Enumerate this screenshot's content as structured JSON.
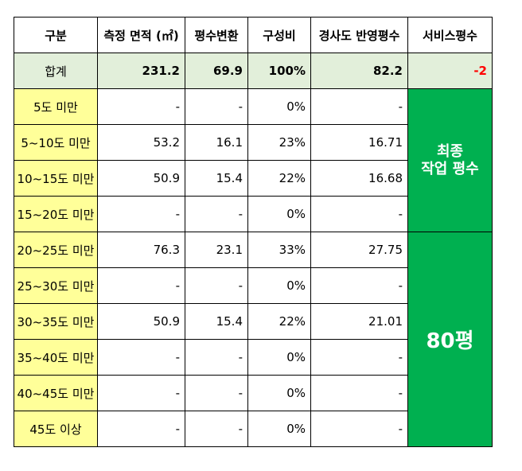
{
  "headers": [
    "구분",
    "측정 면적 (㎡)",
    "평수변환",
    "구성비",
    "경사도 반영평수",
    "서비스평수"
  ],
  "total": {
    "label": "합계",
    "area": "231.2",
    "pyeong": "69.9",
    "ratio": "100%",
    "slope": "82.2",
    "service": "-2"
  },
  "rows": [
    {
      "label": "5도 미만",
      "area": "-",
      "pyeong": "-",
      "ratio": "0%",
      "slope": "-"
    },
    {
      "label": "5~10도 미만",
      "area": "53.2",
      "pyeong": "16.1",
      "ratio": "23%",
      "slope": "16.71"
    },
    {
      "label": "10~15도 미만",
      "area": "50.9",
      "pyeong": "15.4",
      "ratio": "22%",
      "slope": "16.68"
    },
    {
      "label": "15~20도 미만",
      "area": "-",
      "pyeong": "-",
      "ratio": "0%",
      "slope": "-"
    },
    {
      "label": "20~25도 미만",
      "area": "76.3",
      "pyeong": "23.1",
      "ratio": "33%",
      "slope": "27.75"
    },
    {
      "label": "25~30도 미만",
      "area": "-",
      "pyeong": "-",
      "ratio": "0%",
      "slope": "-"
    },
    {
      "label": "30~35도 미만",
      "area": "50.9",
      "pyeong": "15.4",
      "ratio": "22%",
      "slope": "21.01"
    },
    {
      "label": "35~40도 미만",
      "area": "-",
      "pyeong": "-",
      "ratio": "0%",
      "slope": "-"
    },
    {
      "label": "40~45도 미만",
      "area": "-",
      "pyeong": "-",
      "ratio": "0%",
      "slope": "-"
    },
    {
      "label": "45도 이상",
      "area": "-",
      "pyeong": "-",
      "ratio": "0%",
      "slope": "-"
    }
  ],
  "final": {
    "line1": "최종",
    "line2": "작업 평수",
    "value": "80평"
  },
  "colors": {
    "header_bg": "#ffffff",
    "total_bg": "#e2efda",
    "label_bg": "#ffff99",
    "final_bg": "#00b050",
    "negative": "#ff0000"
  }
}
